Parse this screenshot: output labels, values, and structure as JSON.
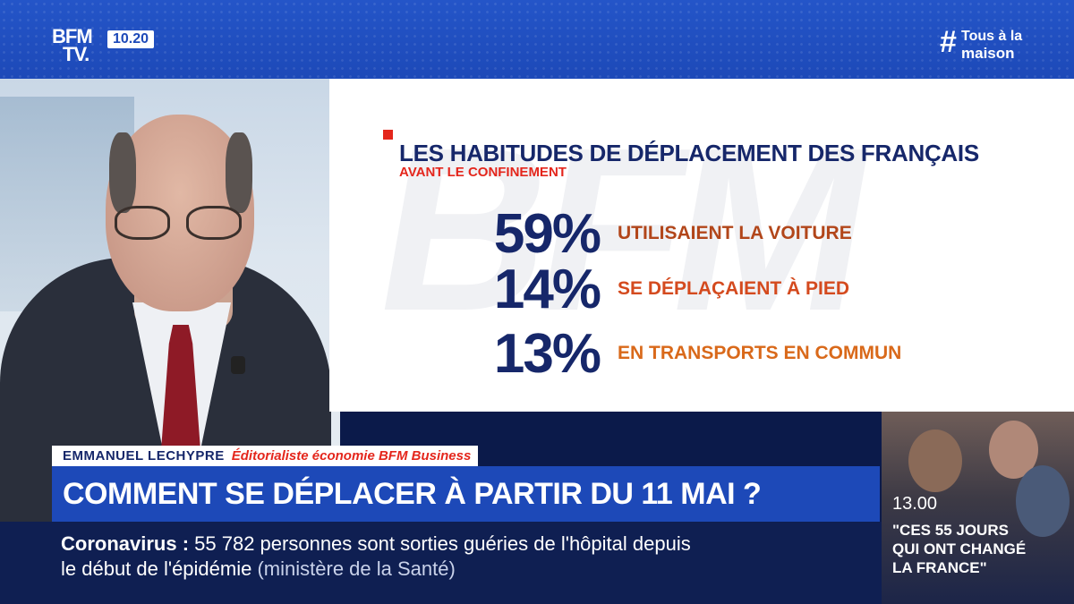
{
  "channel": {
    "logo_line1": "BFM",
    "logo_line2": "TV.",
    "time": "10.20"
  },
  "hashtag": {
    "symbol": "#",
    "line1": "Tous à la",
    "line2": "maison"
  },
  "graphic": {
    "title": "LES HABITUDES DE DÉPLACEMENT DES FRANÇAIS",
    "subtitle": "AVANT LE CONFINEMENT",
    "watermark": "BFM",
    "stats": [
      {
        "value": "59%",
        "label": "UTILISAIENT LA VOITURE",
        "color": "#b2461a"
      },
      {
        "value": "14%",
        "label": "SE DÉPLAÇAIENT À PIED",
        "color": "#d44a1e"
      },
      {
        "value": "13%",
        "label": "EN TRANSPORTS EN COMMUN",
        "color": "#d9691a"
      }
    ]
  },
  "speaker": {
    "name": "EMMANUEL LECHYPRE",
    "role": "Éditorialiste économie BFM Business"
  },
  "headline": "COMMENT SE DÉPLACER À PARTIR DU 11 MAI ?",
  "ticker": {
    "topic": "Coronavirus",
    "separator": " : ",
    "text_line1": "55 782 personnes sont sorties guéries de l'hôpital depuis",
    "text_line2": "le début de l'épidémie",
    "source": "(ministère de la Santé)"
  },
  "promo": {
    "time": "13.00",
    "title_line1": "\"CES 55 JOURS",
    "title_line2": "QUI ONT CHANGÉ",
    "title_line3": "LA FRANCE\""
  },
  "colors": {
    "brand_blue": "#1d49b8",
    "navy": "#16276a",
    "red": "#e4261c"
  }
}
